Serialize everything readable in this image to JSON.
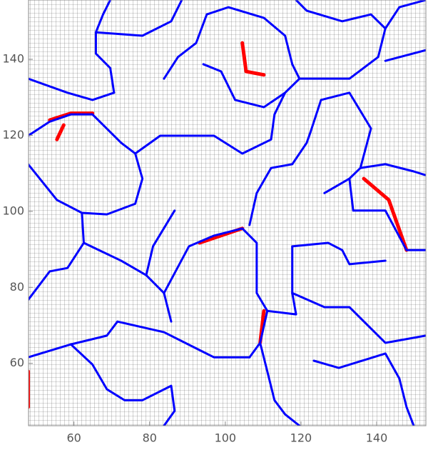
{
  "chart_data": {
    "type": "line",
    "xlim": [
      48,
      153
    ],
    "ylim": [
      43.6,
      155.6
    ],
    "xticks": [
      60,
      80,
      100,
      120,
      140
    ],
    "yticks": [
      60,
      80,
      100,
      120,
      140
    ],
    "mesh": true,
    "series": [
      {
        "color": "#ff0000",
        "x": [
          47.9,
          47.9
        ],
        "values": [
          57.9,
          48.5
        ]
      },
      {
        "color": "#ff0000",
        "x": [
          104.5,
          105.5,
          110.2
        ],
        "values": [
          144.3,
          136.8,
          135.9
        ]
      },
      {
        "color": "#ff0000",
        "x": [
          110.2,
          109.2
        ],
        "values": [
          73.8,
          65.4
        ]
      },
      {
        "color": "#ff0000",
        "x": [
          136.6,
          143.2,
          147.9
        ],
        "values": [
          108.6,
          103,
          89.8
        ]
      },
      {
        "color": "#ff0000",
        "x": [
          93.2,
          104.5
        ],
        "values": [
          91.7,
          95.5
        ]
      },
      {
        "color": "#ff0000",
        "x": [
          57.3,
          55.5
        ],
        "values": [
          122.7,
          118.9
        ]
      },
      {
        "color": "#ff0000",
        "x": [
          53.6,
          59.2,
          64.9
        ],
        "values": [
          124,
          125.8,
          125.8
        ]
      },
      {
        "color": "#0000ff",
        "x": [
          69.6,
          67.7,
          65.8,
          65.8,
          69.6,
          70.6
        ],
        "values": [
          155.6,
          151.8,
          147.1,
          141.5,
          137.7,
          131.2
        ]
      },
      {
        "color": "#0000ff",
        "x": [
          65.8,
          78.1,
          85.7,
          88.5
        ],
        "values": [
          147.1,
          146.2,
          150,
          155.6
        ]
      },
      {
        "color": "#0000ff",
        "x": [
          47.9,
          58.3,
          64.9,
          70.6
        ],
        "values": [
          134.9,
          131.2,
          129.3,
          131.2
        ]
      },
      {
        "color": "#0000ff",
        "x": [
          47.9,
          53.6,
          59.2,
          64.9,
          72.5,
          76.2
        ],
        "values": [
          119.9,
          123.6,
          125.5,
          125.5,
          118,
          115.2
        ]
      },
      {
        "color": "#0000ff",
        "x": [
          76.2,
          82.8,
          89.4,
          97,
          104.5,
          112.1,
          113,
          115.8
        ],
        "values": [
          115.2,
          119.9,
          119.9,
          119.9,
          115.2,
          118.9,
          125.5,
          131.2
        ]
      },
      {
        "color": "#0000ff",
        "x": [
          76.2,
          78.1,
          76.2,
          68.7,
          62.1,
          55.5,
          47.9
        ],
        "values": [
          115.2,
          108.6,
          102,
          99.2,
          99.6,
          103,
          112.4
        ]
      },
      {
        "color": "#0000ff",
        "x": [
          62.1,
          62.6,
          58.3,
          53.6,
          47.9
        ],
        "values": [
          99.6,
          91.7,
          85.1,
          84.2,
          76.7
        ]
      },
      {
        "color": "#0000ff",
        "x": [
          62.6,
          72.5,
          79.1,
          83.8,
          85.7
        ],
        "values": [
          91.7,
          87,
          83.2,
          78.5,
          71
        ]
      },
      {
        "color": "#0000ff",
        "x": [
          79.1,
          80.9,
          86.6
        ],
        "values": [
          83.2,
          90.8,
          100.2
        ]
      },
      {
        "color": "#0000ff",
        "x": [
          83.8,
          90.4,
          97,
          104.5,
          108.3,
          108.3,
          111.1,
          109.2,
          106.4
        ],
        "values": [
          78.5,
          90.8,
          93.6,
          95.5,
          91.7,
          78.5,
          73.8,
          65.4,
          61.6
        ]
      },
      {
        "color": "#0000ff",
        "x": [
          106.4,
          97,
          93.2,
          83.8,
          71.5,
          68.7,
          59.2,
          47.9
        ],
        "values": [
          61.6,
          61.6,
          63.5,
          68.2,
          71,
          67.3,
          65,
          61.6
        ]
      },
      {
        "color": "#0000ff",
        "x": [
          59.2,
          64.9,
          68.7,
          73.4,
          78.1,
          85.7,
          86.6,
          83.8
        ],
        "values": [
          65,
          59.7,
          53.2,
          50.3,
          50.3,
          54.1,
          47.5,
          43.6
        ]
      },
      {
        "color": "#0000ff",
        "x": [
          111.1,
          118.7,
          117.7,
          117.7,
          127.2,
          130.9,
          132.8,
          142.3
        ],
        "values": [
          73.8,
          72.9,
          78.5,
          90.8,
          91.7,
          89.8,
          86.1,
          87
        ]
      },
      {
        "color": "#0000ff",
        "x": [
          109.2,
          111.1,
          113,
          115.8,
          119.6
        ],
        "values": [
          65.4,
          57.9,
          50.3,
          46.6,
          43.6
        ]
      },
      {
        "color": "#0000ff",
        "x": [
          106.4,
          108.3,
          112.1,
          117.7,
          121.5,
          122.5
        ],
        "values": [
          96.4,
          104.8,
          111.4,
          112.4,
          118,
          120.8
        ]
      },
      {
        "color": "#0000ff",
        "x": [
          122.5,
          125.3,
          132.8,
          138.5,
          135.7,
          132.8,
          126.2
        ],
        "values": [
          120.8,
          129.3,
          131.2,
          121.8,
          111.4,
          108.6,
          104.8
        ]
      },
      {
        "color": "#0000ff",
        "x": [
          135.7,
          142.3,
          149.8,
          153
        ],
        "values": [
          111.4,
          112.4,
          110.5,
          109.5
        ]
      },
      {
        "color": "#0000ff",
        "x": [
          132.8,
          133.8,
          142.3,
          147.9,
          153
        ],
        "values": [
          108.6,
          100.2,
          100.2,
          89.8,
          89.8
        ]
      },
      {
        "color": "#0000ff",
        "x": [
          117.7,
          126.2,
          132.8,
          142.3,
          153
        ],
        "values": [
          78.5,
          74.8,
          74.8,
          65.4,
          67.3
        ]
      },
      {
        "color": "#0000ff",
        "x": [
          123.4,
          130,
          142.3,
          146,
          147.9,
          149.8
        ],
        "values": [
          60.7,
          58.8,
          62.6,
          56,
          48.5,
          43.6
        ]
      },
      {
        "color": "#0000ff",
        "x": [
          94.2,
          98.9,
          102.6,
          110.2,
          115.8,
          119.6,
          132.8,
          140.4,
          142.3,
          138.5,
          130.9,
          121.5,
          118.7
        ],
        "values": [
          138.7,
          136.8,
          129.3,
          127.4,
          131.2,
          134.9,
          134.9,
          140.6,
          148.1,
          151.8,
          150,
          152.8,
          155.6
        ]
      },
      {
        "color": "#0000ff",
        "x": [
          83.8,
          87.5,
          92.3,
          95.1,
          100.8,
          110.2,
          115.8,
          117.7,
          119.6
        ],
        "values": [
          134.9,
          140.6,
          144.3,
          151.8,
          153.7,
          150.9,
          146.2,
          138.7,
          134.9
        ]
      },
      {
        "color": "#0000ff",
        "x": [
          142.3,
          153
        ],
        "values": [
          139.6,
          142.4
        ]
      },
      {
        "color": "#0000ff",
        "x": [
          142.3,
          146,
          153
        ],
        "values": [
          148.1,
          153.7,
          155.6
        ]
      }
    ]
  }
}
